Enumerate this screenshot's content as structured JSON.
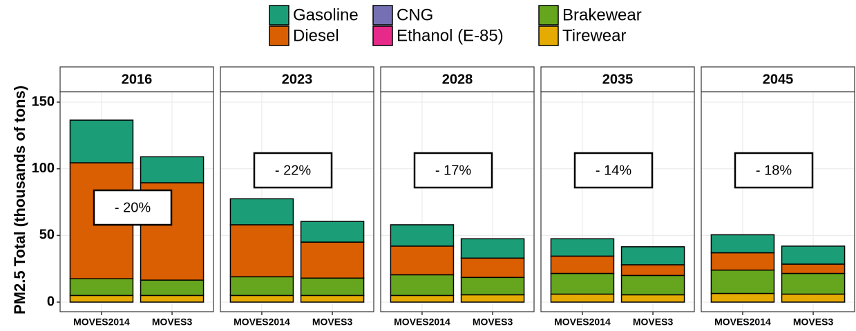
{
  "chart_data": {
    "type": "bar",
    "stacked": true,
    "ylabel": "PM2.5 Total (thousands of tons)",
    "ylim": [
      -7.2,
      157.8
    ],
    "yticks": [
      0,
      50,
      100,
      150
    ],
    "grid": true,
    "legend": "top",
    "categories": [
      "MOVES2014",
      "MOVES3"
    ],
    "series": [
      {
        "name": "Gasoline",
        "color": "#1b9e77"
      },
      {
        "name": "Diesel",
        "color": "#d95f02"
      },
      {
        "name": "CNG",
        "color": "#7570b3"
      },
      {
        "name": "Ethanol (E-85)",
        "color": "#e7298a"
      },
      {
        "name": "Brakewear",
        "color": "#66a61e"
      },
      {
        "name": "Tirewear",
        "color": "#e6ab02"
      }
    ],
    "facets": [
      {
        "title": "2016",
        "annotation": "- 20%",
        "values": [
          [
            32,
            19.5
          ],
          [
            87,
            73
          ],
          [
            0,
            0
          ],
          [
            0,
            0
          ],
          [
            12.5,
            11.5
          ],
          [
            5,
            5
          ]
        ]
      },
      {
        "title": "2023",
        "annotation": "- 22%",
        "values": [
          [
            19.5,
            15.5
          ],
          [
            39,
            27
          ],
          [
            0,
            0
          ],
          [
            0,
            0
          ],
          [
            14,
            13
          ],
          [
            5,
            5
          ]
        ]
      },
      {
        "title": "2028",
        "annotation": "- 17%",
        "values": [
          [
            16,
            14.5
          ],
          [
            21.5,
            14.5
          ],
          [
            0,
            0
          ],
          [
            0,
            0
          ],
          [
            15.5,
            13
          ],
          [
            5,
            5.5
          ]
        ]
      },
      {
        "title": "2035",
        "annotation": "- 14%",
        "values": [
          [
            13,
            13.5
          ],
          [
            13,
            8
          ],
          [
            0,
            0
          ],
          [
            0,
            0
          ],
          [
            15.5,
            14.5
          ],
          [
            6,
            5.5
          ]
        ]
      },
      {
        "title": "2045",
        "annotation": "- 18%",
        "values": [
          [
            13.5,
            13.5
          ],
          [
            13,
            7
          ],
          [
            0,
            0
          ],
          [
            0,
            0
          ],
          [
            17.5,
            15.5
          ],
          [
            6.5,
            6
          ]
        ]
      }
    ]
  }
}
